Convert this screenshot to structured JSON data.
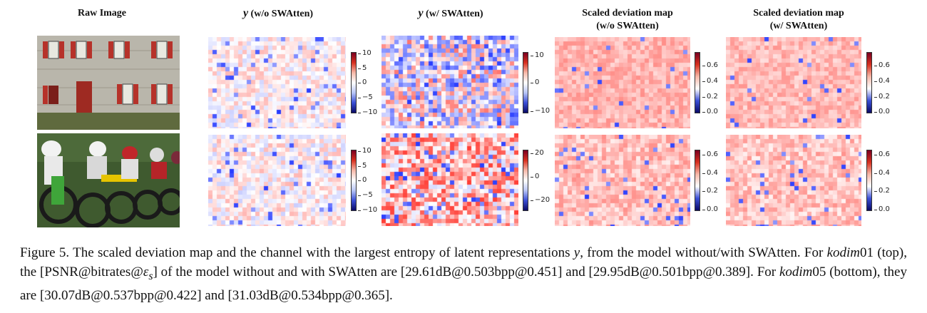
{
  "columns": {
    "raw": "Raw Image",
    "y_wo_sym": "y",
    "y_wo_rest": " (w/o SWAtten)",
    "y_w_sym": "y",
    "y_w_rest": " (w/ SWAtten)",
    "dev_wo_l1": "Scaled deviation map",
    "dev_wo_l2": "(w/o SWAtten)",
    "dev_w_l1": "Scaled deviation map",
    "dev_w_l2": "(w/ SWAtten)"
  },
  "colorbars": {
    "r1_y_wo": [
      "10",
      "5",
      "0",
      "−5",
      "−10"
    ],
    "r1_y_w": [
      "10",
      "0",
      "−10"
    ],
    "r1_dev_wo": [
      "0.6",
      "0.4",
      "0.2",
      "0.0"
    ],
    "r1_dev_w": [
      "0.6",
      "0.4",
      "0.2",
      "0.0"
    ],
    "r2_y_wo": [
      "10",
      "5",
      "0",
      "−5",
      "−10"
    ],
    "r2_y_w": [
      "20",
      "0",
      "−20"
    ],
    "r2_dev_wo": [
      "0.6",
      "0.4",
      "0.2",
      "0.0"
    ],
    "r2_dev_w": [
      "0.6",
      "0.4",
      "0.2",
      "0.0"
    ]
  },
  "caption": {
    "p1": "Figure 5.  The scaled deviation map and the channel with the largest entropy of latent representations ",
    "m1": "y",
    "p2": ", from the model without/with SWAtten. For ",
    "m2": "kodim",
    "p3": "01 (top), the [PSNR@bitrates@",
    "m3": "ε",
    "m3sub": "s",
    "p4": "] of the model without and with SWAtten are [29.61dB@0.503bpp@0.451] and [29.95dB@0.501bpp@0.389]. For ",
    "m4": "kodim",
    "p5": "05 (bottom), they are [30.07dB@0.537bpp@0.422] and [31.03dB@0.534bpp@0.365]."
  }
}
